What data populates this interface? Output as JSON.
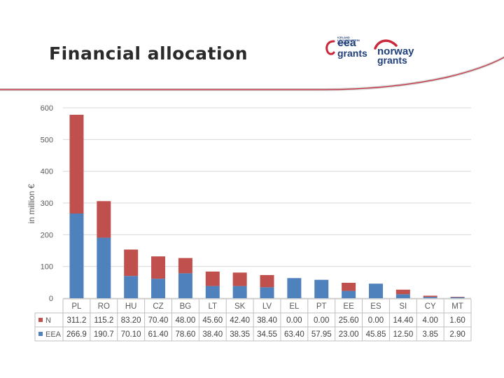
{
  "header": {
    "title": "Financial allocation",
    "logo_eea_small": "ICELAND LIECHTENSTEIN NORWAY",
    "logo_eea_line1": "eea",
    "logo_eea_line2": "grants",
    "logo_norway_line1": "norway",
    "logo_norway_line2": "grants"
  },
  "colors": {
    "n_series": "#c0504d",
    "eea_series": "#4f81bd",
    "logo_blue": "#1f3f7a",
    "logo_red": "#c8283a"
  },
  "chart_data": {
    "type": "bar",
    "stacked": true,
    "title": "",
    "xlabel": "",
    "ylabel": "in million €",
    "ylim": [
      0,
      600
    ],
    "yticks": [
      "0",
      "100",
      "200",
      "300",
      "400",
      "500",
      "600"
    ],
    "grid": true,
    "legend": "data-table",
    "categories": [
      "PL",
      "RO",
      "HU",
      "CZ",
      "BG",
      "LT",
      "SK",
      "LV",
      "EL",
      "PT",
      "EE",
      "ES",
      "SI",
      "CY",
      "MT"
    ],
    "series": [
      {
        "name": "N",
        "color": "#c0504d",
        "values": [
          311.2,
          115.2,
          83.2,
          70.4,
          48.0,
          45.6,
          42.4,
          38.4,
          0.0,
          0.0,
          25.6,
          0.0,
          14.4,
          4.0,
          1.6
        ],
        "labels": [
          "311.2",
          "115.2",
          "83.20",
          "70.40",
          "48.00",
          "45.60",
          "42.40",
          "38.40",
          "0.00",
          "0.00",
          "25.60",
          "0.00",
          "14.40",
          "4.00",
          "1.60"
        ]
      },
      {
        "name": "EEA",
        "color": "#4f81bd",
        "values": [
          266.9,
          190.7,
          70.1,
          61.4,
          78.6,
          38.4,
          38.35,
          34.55,
          63.4,
          57.95,
          23.0,
          45.85,
          12.5,
          3.85,
          2.9
        ],
        "labels": [
          "266.9",
          "190.7",
          "70.10",
          "61.40",
          "78.60",
          "38.40",
          "38.35",
          "34.55",
          "63.40",
          "57.95",
          "23.00",
          "45.85",
          "12.50",
          "3.85",
          "2.90"
        ]
      }
    ]
  }
}
